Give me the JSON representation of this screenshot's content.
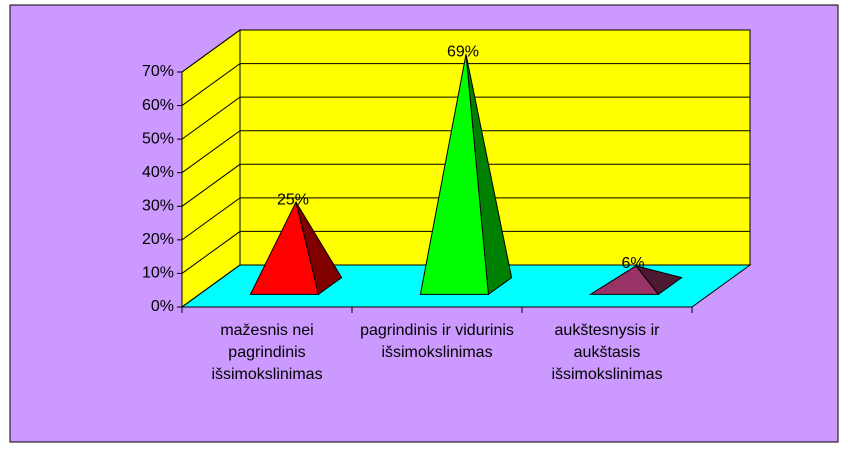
{
  "chart_data": {
    "type": "pyramid3d",
    "categories": [
      "mažesnis nei pagrindinis išsimokslinimas",
      "pagrindinis ir vidurinis išsimokslinimas",
      "aukštesnysis ir aukštasis išsimokslinimas"
    ],
    "values": [
      25,
      69,
      6
    ],
    "value_labels": [
      "25%",
      "69%",
      "6%"
    ],
    "colors": [
      [
        "#ff0000",
        "#800000"
      ],
      [
        "#00ff00",
        "#008000"
      ],
      [
        "#993366",
        "#4d1933"
      ]
    ],
    "ylim": [
      0,
      70
    ],
    "yticks": [
      {
        "value": 0,
        "label": "0%"
      },
      {
        "value": 10,
        "label": "10%"
      },
      {
        "value": 20,
        "label": "20%"
      },
      {
        "value": 30,
        "label": "30%"
      },
      {
        "value": 40,
        "label": "40%"
      },
      {
        "value": 50,
        "label": "50%"
      },
      {
        "value": 60,
        "label": "60%"
      },
      {
        "value": 70,
        "label": "70%"
      }
    ],
    "grid": true,
    "background": "#cc99ff",
    "wall_color": "#ffff00",
    "floor_color": "#00ffff"
  }
}
